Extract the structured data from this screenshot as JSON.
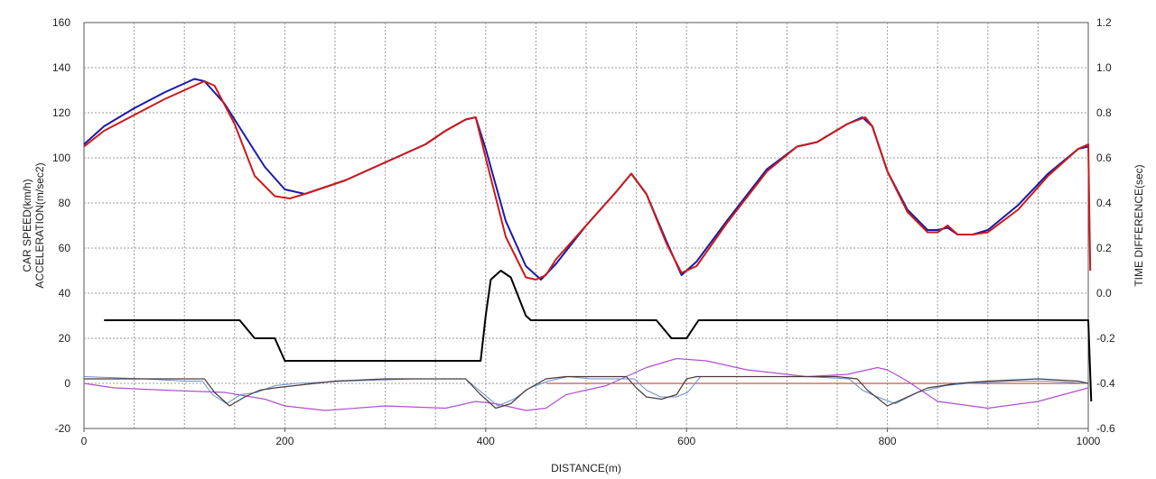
{
  "chart_data": {
    "type": "line",
    "title": "",
    "xlabel": "DISTANCE(m)",
    "ylabel_left": [
      "CAR SPEED(km/h)",
      "ACCELERATION(m/sec2)"
    ],
    "ylabel_right": "TIME DIFFERENCE(sec)",
    "xlim": [
      0,
      1000
    ],
    "ylim_left": [
      -20,
      160
    ],
    "ylim_right": [
      -0.6,
      1.2
    ],
    "x_ticks": [
      "0",
      "200",
      "400",
      "600",
      "800",
      "1000"
    ],
    "y_left_ticks": [
      "-20",
      "0",
      "20",
      "40",
      "60",
      "80",
      "100",
      "120",
      "140",
      "160"
    ],
    "y_right_ticks": [
      "-0.6",
      "-0.4",
      "-0.2",
      "0.0",
      "0.2",
      "0.4",
      "0.6",
      "0.8",
      "1.0",
      "1.2"
    ],
    "grid": true,
    "colors": {
      "speed_blue": "#1a1aa8",
      "speed_red": "#cc1a1a",
      "time_diff": "#000000",
      "accel_dark": "#4a3a3a",
      "accel_light": "#6a8fd0",
      "lateral_purple": "#b050d0",
      "zero_line": "#b03020",
      "grid": "#999999"
    },
    "series": [
      {
        "key": "speed_blue",
        "axis": "left",
        "x": [
          0,
          20,
          50,
          80,
          110,
          120,
          140,
          160,
          180,
          200,
          220,
          260,
          300,
          340,
          360,
          380,
          390,
          400,
          420,
          440,
          455,
          470,
          500,
          530,
          545,
          560,
          580,
          595,
          610,
          640,
          680,
          710,
          730,
          760,
          775,
          785,
          800,
          820,
          840,
          850,
          860,
          870,
          885,
          900,
          930,
          960,
          990,
          1000
        ],
        "y": [
          106,
          114,
          122,
          129,
          135,
          134,
          124,
          110,
          96,
          86,
          84,
          90,
          98,
          106,
          112,
          117,
          118,
          104,
          72,
          52,
          46,
          53,
          70,
          85,
          93,
          84,
          63,
          48,
          54,
          72,
          95,
          105,
          107,
          115,
          118,
          114,
          94,
          77,
          68,
          68,
          69,
          66,
          66,
          68,
          79,
          93,
          104,
          105
        ]
      },
      {
        "key": "speed_red",
        "axis": "left",
        "x": [
          0,
          20,
          50,
          80,
          110,
          120,
          130,
          150,
          170,
          190,
          205,
          220,
          260,
          300,
          340,
          360,
          380,
          390,
          400,
          420,
          440,
          450,
          460,
          470,
          500,
          530,
          545,
          560,
          580,
          595,
          610,
          640,
          680,
          710,
          730,
          760,
          778,
          785,
          800,
          820,
          840,
          850,
          860,
          870,
          885,
          900,
          930,
          960,
          990,
          1000,
          1002
        ],
        "y": [
          105,
          112,
          119,
          126,
          132,
          134,
          132,
          115,
          92,
          83,
          82,
          84,
          90,
          98,
          106,
          112,
          117,
          118,
          100,
          65,
          47,
          46,
          48,
          55,
          70,
          85,
          93,
          84,
          62,
          49,
          52,
          71,
          94,
          105,
          107,
          115,
          118,
          114,
          94,
          76,
          67,
          67,
          70,
          66,
          66,
          67,
          77,
          92,
          104,
          106,
          50
        ]
      },
      {
        "key": "time_diff",
        "axis": "right",
        "x": [
          20,
          155,
          170,
          190,
          200,
          205,
          210,
          395,
          400,
          405,
          415,
          425,
          440,
          445,
          570,
          585,
          600,
          612,
          620,
          1000,
          1003
        ],
        "y": [
          -0.12,
          -0.12,
          -0.2,
          -0.2,
          -0.3,
          -0.3,
          -0.3,
          -0.3,
          -0.1,
          0.06,
          0.1,
          0.07,
          -0.1,
          -0.12,
          -0.12,
          -0.2,
          -0.2,
          -0.12,
          -0.12,
          -0.12,
          -0.48
        ]
      },
      {
        "key": "accel_dark",
        "axis": "left",
        "x": [
          0,
          50,
          100,
          120,
          130,
          145,
          160,
          175,
          190,
          210,
          250,
          300,
          380,
          395,
          410,
          425,
          440,
          460,
          480,
          500,
          540,
          550,
          560,
          575,
          590,
          600,
          610,
          650,
          700,
          750,
          770,
          780,
          800,
          815,
          840,
          870,
          900,
          950,
          990,
          1000
        ],
        "y": [
          2,
          2,
          2,
          2,
          -4,
          -10,
          -6,
          -3,
          -2,
          -1,
          1,
          2,
          2,
          -5,
          -11,
          -9,
          -3,
          2,
          3,
          3,
          3,
          -2,
          -6,
          -7,
          -5,
          2,
          3,
          3,
          3,
          3,
          2,
          -3,
          -10,
          -7,
          -2,
          0,
          1,
          2,
          1,
          0
        ]
      },
      {
        "key": "accel_light",
        "axis": "left",
        "x": [
          0,
          60,
          100,
          118,
          128,
          142,
          156,
          172,
          190,
          212,
          260,
          330,
          380,
          396,
          412,
          428,
          444,
          462,
          482,
          505,
          548,
          560,
          574,
          590,
          601,
          614,
          660,
          720,
          762,
          775,
          790,
          808,
          830,
          858,
          880,
          925,
          960,
          1000
        ],
        "y": [
          3,
          2,
          1,
          1,
          -5,
          -9,
          -5,
          -4,
          -1,
          0,
          1,
          2,
          2,
          -4,
          -10,
          -7,
          -2,
          1,
          3,
          2,
          2,
          -3,
          -6,
          -6,
          -4,
          3,
          3,
          3,
          2,
          -3,
          -6,
          -9,
          -4,
          -1,
          0,
          1,
          1,
          0
        ]
      },
      {
        "key": "lateral_purple",
        "axis": "left",
        "x": [
          0,
          30,
          80,
          140,
          180,
          200,
          240,
          300,
          360,
          390,
          410,
          440,
          460,
          480,
          520,
          560,
          590,
          620,
          660,
          720,
          760,
          790,
          800,
          820,
          850,
          900,
          950,
          1000
        ],
        "y": [
          0,
          -2,
          -3,
          -4,
          -7,
          -10,
          -12,
          -10,
          -11,
          -8,
          -9,
          -12,
          -11,
          -5,
          -1,
          7,
          11,
          10,
          6,
          3,
          4,
          7,
          6,
          1,
          -8,
          -11,
          -8,
          -2
        ]
      }
    ]
  }
}
